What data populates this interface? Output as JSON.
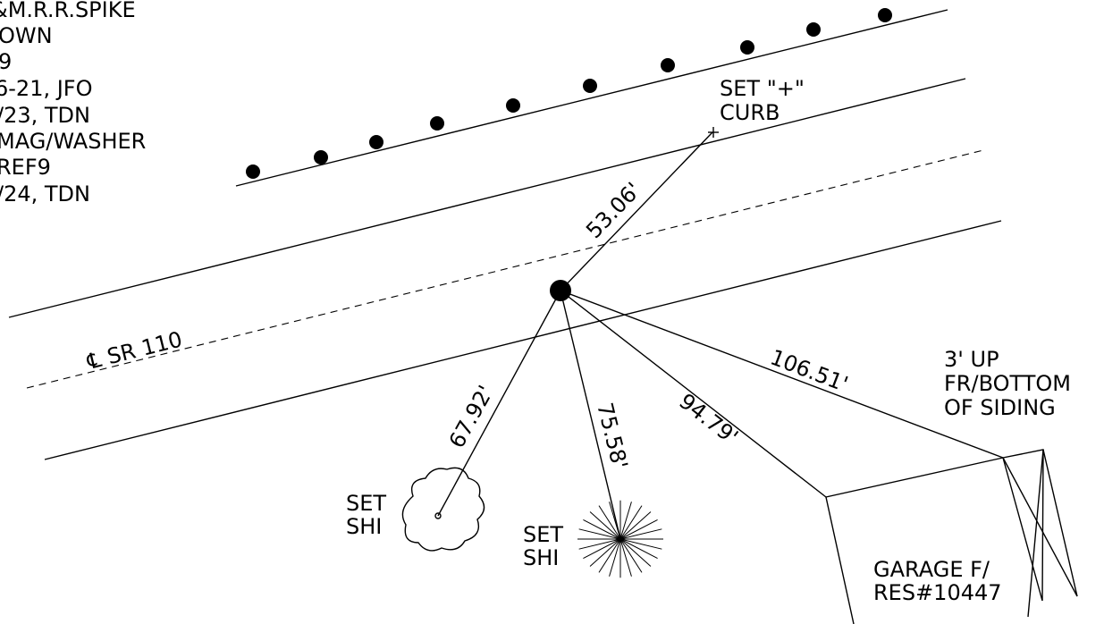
{
  "notes": {
    "line1": "&M.R.R.SPIKE",
    "line2": "OWN",
    "line3": "9",
    "line4": "6-21, JFO",
    "line5": "/23, TDN",
    "line6": "MAG/WASHER",
    "line7": "REF9",
    "line8": "/24, TDN"
  },
  "labels": {
    "set_curb_1": "SET \"+\"",
    "set_curb_2": "CURB",
    "centerline": "℄ SR 110",
    "dist_curb": "53.06'",
    "dist_bush": "67.92'",
    "dist_tree": "75.58'",
    "dist_garage_corner": "94.79'",
    "dist_siding": "106.51'",
    "bush_1": "SET",
    "bush_2": "SHI",
    "tree_1": "SET",
    "tree_2": "SHI",
    "siding_1": "3' UP",
    "siding_2": "FR/BOTTOM",
    "siding_3": "OF SIDING",
    "garage_1": "GARAGE F/",
    "garage_2": "RES#10447"
  },
  "colors": {
    "ink": "#000000",
    "paper": "#ffffff"
  }
}
